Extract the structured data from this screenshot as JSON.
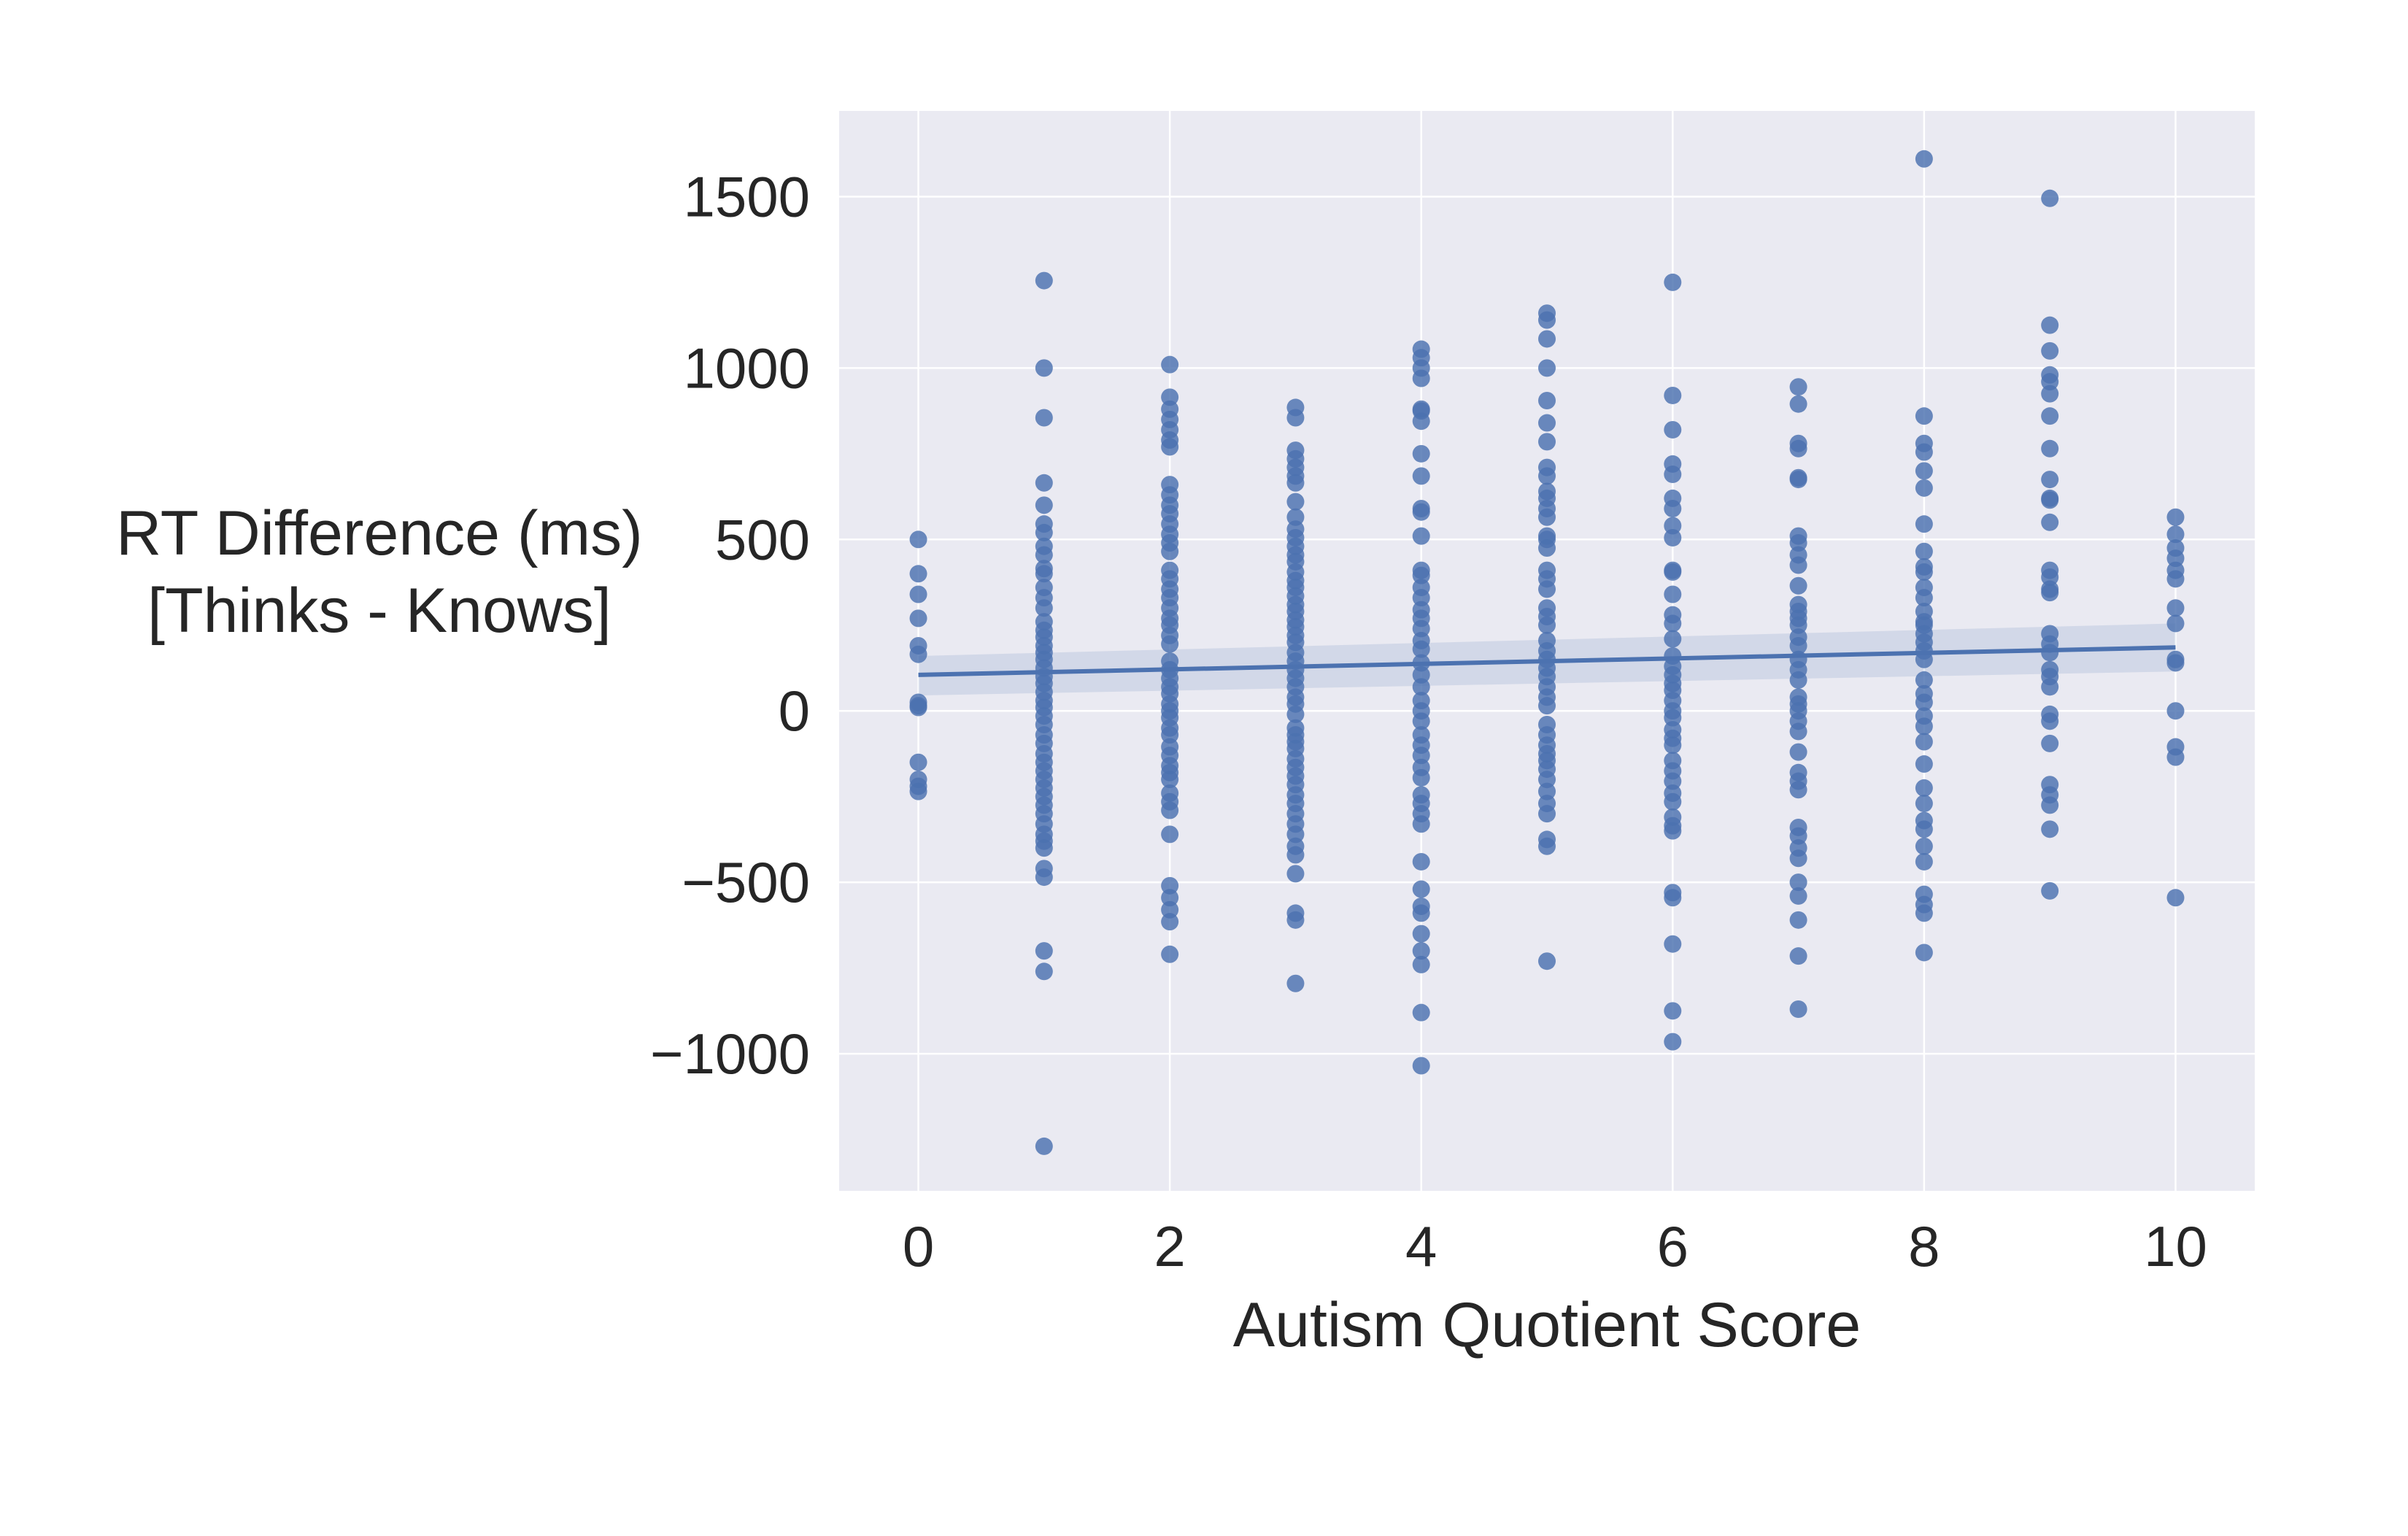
{
  "chart_data": {
    "type": "scatter",
    "xlabel": "Autism Quotient Score",
    "ylabel_lines": [
      "RT Difference (ms)",
      "[Thinks - Knows]"
    ],
    "xlim": [
      -0.63,
      10.63
    ],
    "ylim": [
      -1400,
      1750
    ],
    "xticks": [
      0,
      2,
      4,
      6,
      8,
      10
    ],
    "yticks": [
      -1000,
      -500,
      0,
      500,
      1000,
      1500
    ],
    "ytick_labels": [
      "−1000",
      "−500",
      "0",
      "500",
      "1000",
      "1500"
    ],
    "grid": true,
    "colors": {
      "axes_bg": "#EAEAF2",
      "grid": "#FFFFFF",
      "point": "#4C72B0",
      "line": "#4C72B0",
      "band": "#4C72B0"
    },
    "regression": {
      "x": [
        0,
        10
      ],
      "y": [
        105,
        185
      ],
      "ci_lower": [
        45,
        115
      ],
      "ci_upper": [
        160,
        255
      ]
    },
    "points": [
      {
        "x": 0,
        "y": [
          500,
          400,
          340,
          270,
          190,
          165,
          25,
          15,
          10,
          -150,
          -200,
          -220,
          -235
        ]
      },
      {
        "x": 1,
        "y": [
          1255,
          1000,
          855,
          665,
          600,
          545,
          520,
          480,
          455,
          415,
          400,
          360,
          330,
          300,
          260,
          235,
          215,
          190,
          170,
          150,
          125,
          100,
          80,
          55,
          30,
          10,
          -15,
          -40,
          -70,
          -95,
          -125,
          -150,
          -175,
          -200,
          -225,
          -250,
          -275,
          -300,
          -330,
          -360,
          -380,
          -400,
          -460,
          -485,
          -700,
          -760,
          -1270
        ]
      },
      {
        "x": 2,
        "y": [
          1010,
          915,
          880,
          850,
          820,
          790,
          770,
          660,
          630,
          600,
          575,
          545,
          515,
          490,
          465,
          410,
          385,
          355,
          330,
          300,
          270,
          250,
          220,
          195,
          145,
          120,
          95,
          70,
          50,
          20,
          0,
          -20,
          -50,
          -70,
          -105,
          -130,
          -160,
          -180,
          -200,
          -240,
          -265,
          -290,
          -360,
          -510,
          -545,
          -580,
          -615,
          -710
        ]
      },
      {
        "x": 3,
        "y": [
          885,
          855,
          760,
          735,
          710,
          685,
          665,
          610,
          565,
          530,
          505,
          480,
          455,
          435,
          405,
          380,
          360,
          335,
          310,
          290,
          265,
          245,
          220,
          200,
          170,
          145,
          120,
          95,
          70,
          40,
          20,
          -10,
          -50,
          -70,
          -90,
          -110,
          -140,
          -165,
          -190,
          -215,
          -245,
          -270,
          -300,
          -330,
          -360,
          -395,
          -420,
          -475,
          -590,
          -610,
          -795
        ]
      },
      {
        "x": 4,
        "y": [
          1055,
          1030,
          1000,
          970,
          880,
          875,
          845,
          750,
          685,
          590,
          580,
          510,
          410,
          395,
          360,
          330,
          295,
          270,
          240,
          205,
          180,
          140,
          105,
          70,
          30,
          0,
          -30,
          -70,
          -100,
          -130,
          -165,
          -195,
          -245,
          -270,
          -300,
          -330,
          -440,
          -520,
          -570,
          -590,
          -650,
          -700,
          -740,
          -880,
          -1035
        ]
      },
      {
        "x": 5,
        "y": [
          1160,
          1140,
          1085,
          1000,
          905,
          840,
          785,
          710,
          685,
          640,
          620,
          590,
          565,
          510,
          500,
          475,
          410,
          385,
          355,
          300,
          275,
          250,
          205,
          175,
          150,
          125,
          100,
          70,
          40,
          15,
          -40,
          -70,
          -100,
          -125,
          -145,
          -170,
          -200,
          -235,
          -270,
          -300,
          -375,
          -395,
          -730
        ]
      },
      {
        "x": 6,
        "y": [
          1250,
          920,
          820,
          720,
          690,
          620,
          590,
          540,
          505,
          410,
          405,
          340,
          280,
          255,
          210,
          160,
          130,
          105,
          80,
          60,
          30,
          0,
          -20,
          -55,
          -80,
          -100,
          -145,
          -175,
          -205,
          -240,
          -265,
          -310,
          -335,
          -350,
          -530,
          -545,
          -680,
          -875,
          -965
        ]
      },
      {
        "x": 7,
        "y": [
          945,
          895,
          780,
          765,
          680,
          675,
          510,
          490,
          455,
          425,
          365,
          310,
          290,
          270,
          250,
          215,
          190,
          150,
          120,
          90,
          40,
          20,
          0,
          -30,
          -60,
          -120,
          -180,
          -205,
          -230,
          -340,
          -365,
          -400,
          -430,
          -500,
          -540,
          -610,
          -715,
          -870
        ]
      },
      {
        "x": 8,
        "y": [
          1610,
          860,
          780,
          755,
          700,
          650,
          545,
          465,
          420,
          405,
          360,
          330,
          290,
          260,
          250,
          225,
          200,
          175,
          150,
          90,
          50,
          25,
          -15,
          -45,
          -90,
          -155,
          -225,
          -270,
          -320,
          -345,
          -395,
          -440,
          -535,
          -565,
          -590,
          -705
        ]
      },
      {
        "x": 9,
        "y": [
          1495,
          1125,
          1050,
          980,
          960,
          925,
          860,
          765,
          675,
          620,
          615,
          550,
          410,
          390,
          355,
          345,
          225,
          195,
          170,
          120,
          100,
          70,
          -10,
          -30,
          -95,
          -215,
          -245,
          -275,
          -345,
          -525
        ]
      },
      {
        "x": 10,
        "y": [
          565,
          515,
          475,
          445,
          410,
          385,
          300,
          255,
          150,
          140,
          0,
          -105,
          -135,
          -545
        ]
      }
    ]
  }
}
